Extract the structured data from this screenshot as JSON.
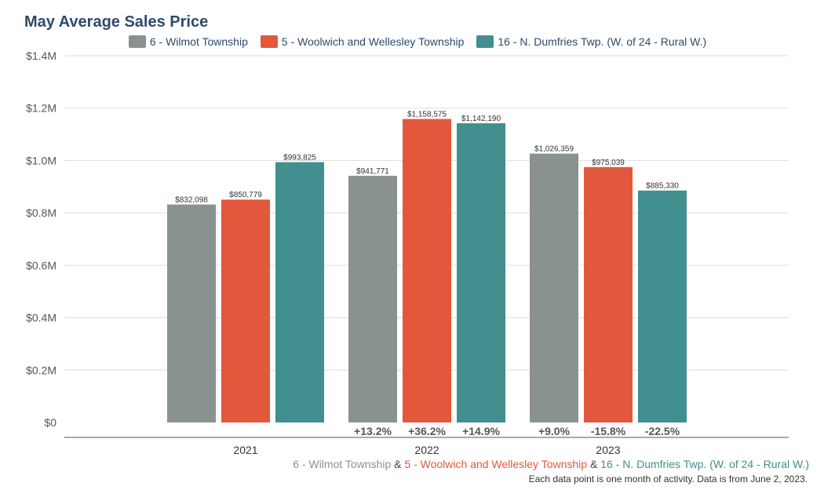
{
  "title": "May Average Sales Price",
  "colors": {
    "gray": "#8a9290",
    "red": "#e3573d",
    "teal": "#418f8e",
    "title": "#2e4a6b",
    "grid": "#dddddd",
    "axis": "#555555"
  },
  "chart_data": {
    "type": "bar",
    "categories": [
      "2021",
      "2022",
      "2023"
    ],
    "ylim": [
      0,
      1400000
    ],
    "yticks": [
      {
        "value": 0,
        "label": "$0"
      },
      {
        "value": 200000,
        "label": "$0.2M"
      },
      {
        "value": 400000,
        "label": "$0.4M"
      },
      {
        "value": 600000,
        "label": "$0.6M"
      },
      {
        "value": 800000,
        "label": "$0.8M"
      },
      {
        "value": 1000000,
        "label": "$1.0M"
      },
      {
        "value": 1200000,
        "label": "$1.2M"
      },
      {
        "value": 1400000,
        "label": "$1.4M"
      }
    ],
    "grid": true,
    "legend_position": "top-center",
    "series": [
      {
        "name": "6 - Wilmot Township",
        "color": "#8a9290",
        "values": [
          832098,
          941771,
          1026359
        ],
        "value_labels": [
          "$832,098",
          "$941,771",
          "$1,026,359"
        ],
        "changes": [
          "",
          "+13.2%",
          "+9.0%"
        ]
      },
      {
        "name": "5 - Woolwich and Wellesley Township",
        "color": "#e3573d",
        "values": [
          850779,
          1158575,
          975039
        ],
        "value_labels": [
          "$850,779",
          "$1,158,575",
          "$975,039"
        ],
        "changes": [
          "",
          "+36.2%",
          "-15.8%"
        ]
      },
      {
        "name": "16 - N. Dumfries Twp. (W. of 24 - Rural W.)",
        "color": "#418f8e",
        "values": [
          993825,
          1142190,
          885330
        ],
        "value_labels": [
          "$993,825",
          "$1,142,190",
          "$885,330"
        ],
        "changes": [
          "",
          "+14.9%",
          "-22.5%"
        ]
      }
    ]
  },
  "footer": {
    "series_names": [
      "6 - Wilmot Township",
      "5 - Woolwich and Wellesley Township",
      "16 - N. Dumfries Twp. (W. of 24 - Rural W.)"
    ],
    "separator": "&",
    "note": "Each data point is one month of activity. Data is from June 2, 2023."
  }
}
